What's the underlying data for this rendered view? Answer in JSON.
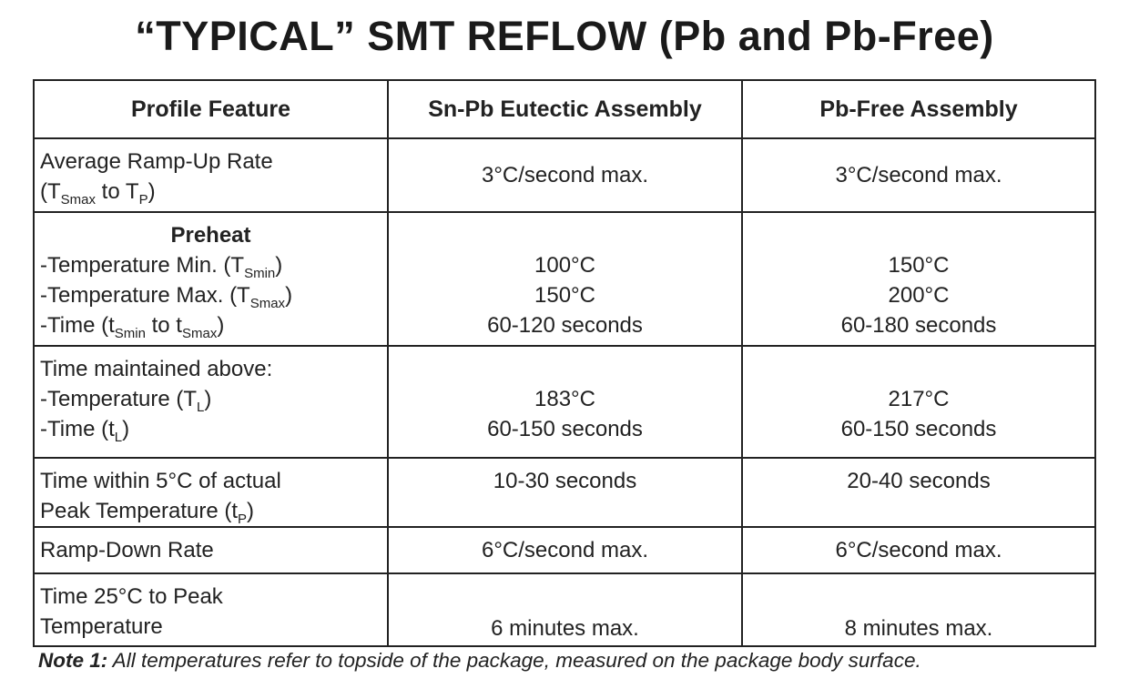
{
  "title": "“TYPICAL” SMT REFLOW (Pb and Pb-Free)",
  "table": {
    "headers": [
      "Profile Feature",
      "Sn-Pb Eutectic Assembly",
      "Pb-Free Assembly"
    ],
    "rows": [
      {
        "name": "average-ramp-up-rate",
        "height": 81,
        "valign": "middle",
        "feature": [
          [
            {
              "t": "Average Ramp-Up Rate"
            }
          ],
          [
            {
              "t": "(T"
            },
            {
              "t": "Smax",
              "sub": true
            },
            {
              "t": " to T"
            },
            {
              "t": "P",
              "sub": true
            },
            {
              "t": ")"
            }
          ]
        ],
        "snpb": [
          "3°C/second max."
        ],
        "pbfree": [
          "3°C/second max."
        ]
      },
      {
        "name": "preheat",
        "height": 147,
        "valign": "top",
        "feature": [
          [
            {
              "t": "Preheat",
              "bold": true
            }
          ],
          [
            {
              "t": "-Temperature Min. (T"
            },
            {
              "t": "Smin",
              "sub": true
            },
            {
              "t": ")"
            }
          ],
          [
            {
              "t": "-Temperature Max. (T"
            },
            {
              "t": "Smax",
              "sub": true
            },
            {
              "t": ")"
            }
          ],
          [
            {
              "t": "-Time (t"
            },
            {
              "t": "Smin",
              "sub": true
            },
            {
              "t": " to t"
            },
            {
              "t": "Smax",
              "sub": true
            },
            {
              "t": ")"
            }
          ]
        ],
        "snpb": [
          "",
          "100°C",
          "150°C",
          "60-120 seconds"
        ],
        "pbfree": [
          "",
          "150°C",
          "200°C",
          "60-180 seconds"
        ]
      },
      {
        "name": "time-above-liquidus",
        "height": 123,
        "valign": "top",
        "feature": [
          [
            {
              "t": "Time maintained above:"
            }
          ],
          [
            {
              "t": "-Temperature (T"
            },
            {
              "t": "L",
              "sub": true
            },
            {
              "t": ")"
            }
          ],
          [
            {
              "t": "-Time (t"
            },
            {
              "t": "L",
              "sub": true
            },
            {
              "t": ")"
            }
          ]
        ],
        "snpb": [
          "",
          "183°C",
          "60-150 seconds"
        ],
        "pbfree": [
          "",
          "217°C",
          "60-150 seconds"
        ]
      },
      {
        "name": "time-within-peak",
        "height": 74,
        "valign": "top",
        "feature": [
          [
            {
              "t": "Time within 5°C of actual"
            }
          ],
          [
            {
              "t": "Peak Temperature (t"
            },
            {
              "t": "P",
              "sub": true
            },
            {
              "t": ")"
            }
          ]
        ],
        "snpb": [
          "10-30 seconds"
        ],
        "pbfree": [
          "20-40 seconds"
        ]
      },
      {
        "name": "ramp-down-rate",
        "height": 51,
        "valign": "middle",
        "feature": [
          [
            {
              "t": "Ramp-Down Rate"
            }
          ]
        ],
        "snpb": [
          "6°C/second max."
        ],
        "pbfree": [
          "6°C/second max."
        ]
      },
      {
        "name": "time-to-peak",
        "height": 80,
        "valign": "bottom",
        "feature": [
          [
            {
              "t": "Time 25°C to Peak"
            }
          ],
          [
            {
              "t": "Temperature"
            }
          ]
        ],
        "snpb": [
          "6 minutes max."
        ],
        "pbfree": [
          "8 minutes max."
        ]
      }
    ]
  },
  "note": {
    "label": "Note 1:",
    "text": " All temperatures refer to topside of the package, measured on the package body surface."
  }
}
